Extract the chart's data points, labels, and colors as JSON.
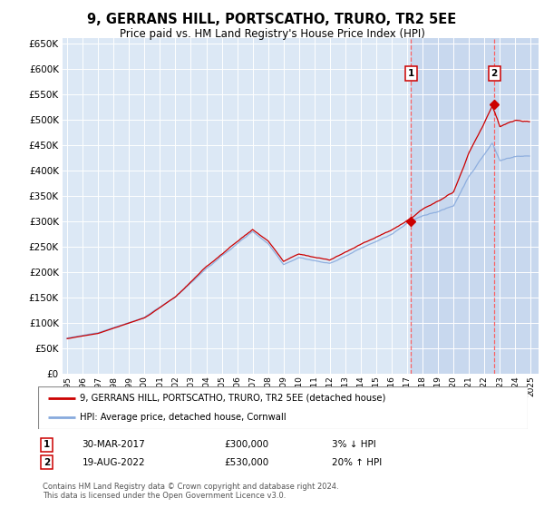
{
  "title": "9, GERRANS HILL, PORTSCATHO, TRURO, TR2 5EE",
  "subtitle": "Price paid vs. HM Land Registry's House Price Index (HPI)",
  "background_color": "#ffffff",
  "plot_bg_color": "#dce8f5",
  "grid_color": "#ffffff",
  "ylim": [
    0,
    660000
  ],
  "yticks": [
    0,
    50000,
    100000,
    150000,
    200000,
    250000,
    300000,
    350000,
    400000,
    450000,
    500000,
    550000,
    600000,
    650000
  ],
  "xlim_start": 1994.7,
  "xlim_end": 2025.5,
  "sale1_year": 2017.25,
  "sale1_price": 300000,
  "sale2_year": 2022.63,
  "sale2_price": 530000,
  "red_line_color": "#cc0000",
  "blue_line_color": "#88aadd",
  "vline_color": "#ff5555",
  "highlight_bg": "#c8d8ee",
  "legend_label1": "9, GERRANS HILL, PORTSCATHO, TRURO, TR2 5EE (detached house)",
  "legend_label2": "HPI: Average price, detached house, Cornwall",
  "note1_date": "30-MAR-2017",
  "note1_price": "£300,000",
  "note1_hpi": "3% ↓ HPI",
  "note2_date": "19-AUG-2022",
  "note2_price": "£530,000",
  "note2_hpi": "20% ↑ HPI",
  "footer": "Contains HM Land Registry data © Crown copyright and database right 2024.\nThis data is licensed under the Open Government Licence v3.0."
}
